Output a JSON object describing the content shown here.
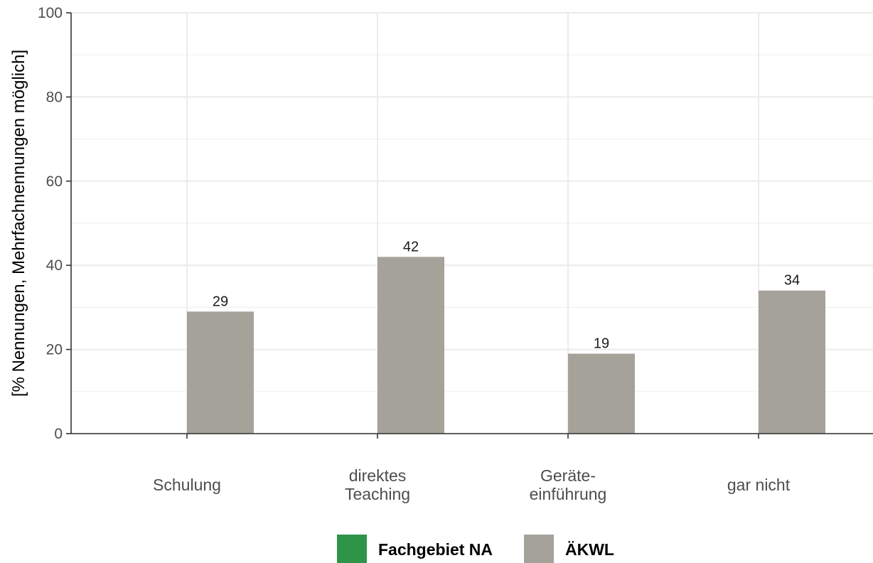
{
  "chart_data": {
    "type": "bar",
    "title": "",
    "xlabel": "",
    "ylabel": "[% Nennungen, Mehrfachnennungen möglich]",
    "ylim": [
      0,
      100
    ],
    "yticks": [
      0,
      20,
      40,
      60,
      80,
      100
    ],
    "categories": [
      [
        "Schulung"
      ],
      [
        "direktes",
        "Teaching"
      ],
      [
        "Geräte-",
        "einführung"
      ],
      [
        "gar nicht"
      ]
    ],
    "series": [
      {
        "name": "Fachgebiet NA",
        "color": "#2e9448",
        "values": [
          null,
          null,
          null,
          null
        ]
      },
      {
        "name": "ÄKWL",
        "color": "#a5a29a",
        "values": [
          29,
          42,
          19,
          34
        ],
        "data_labels": [
          "29",
          "42",
          "19",
          "34"
        ]
      }
    ],
    "grid": true,
    "legend_position": "bottom"
  }
}
